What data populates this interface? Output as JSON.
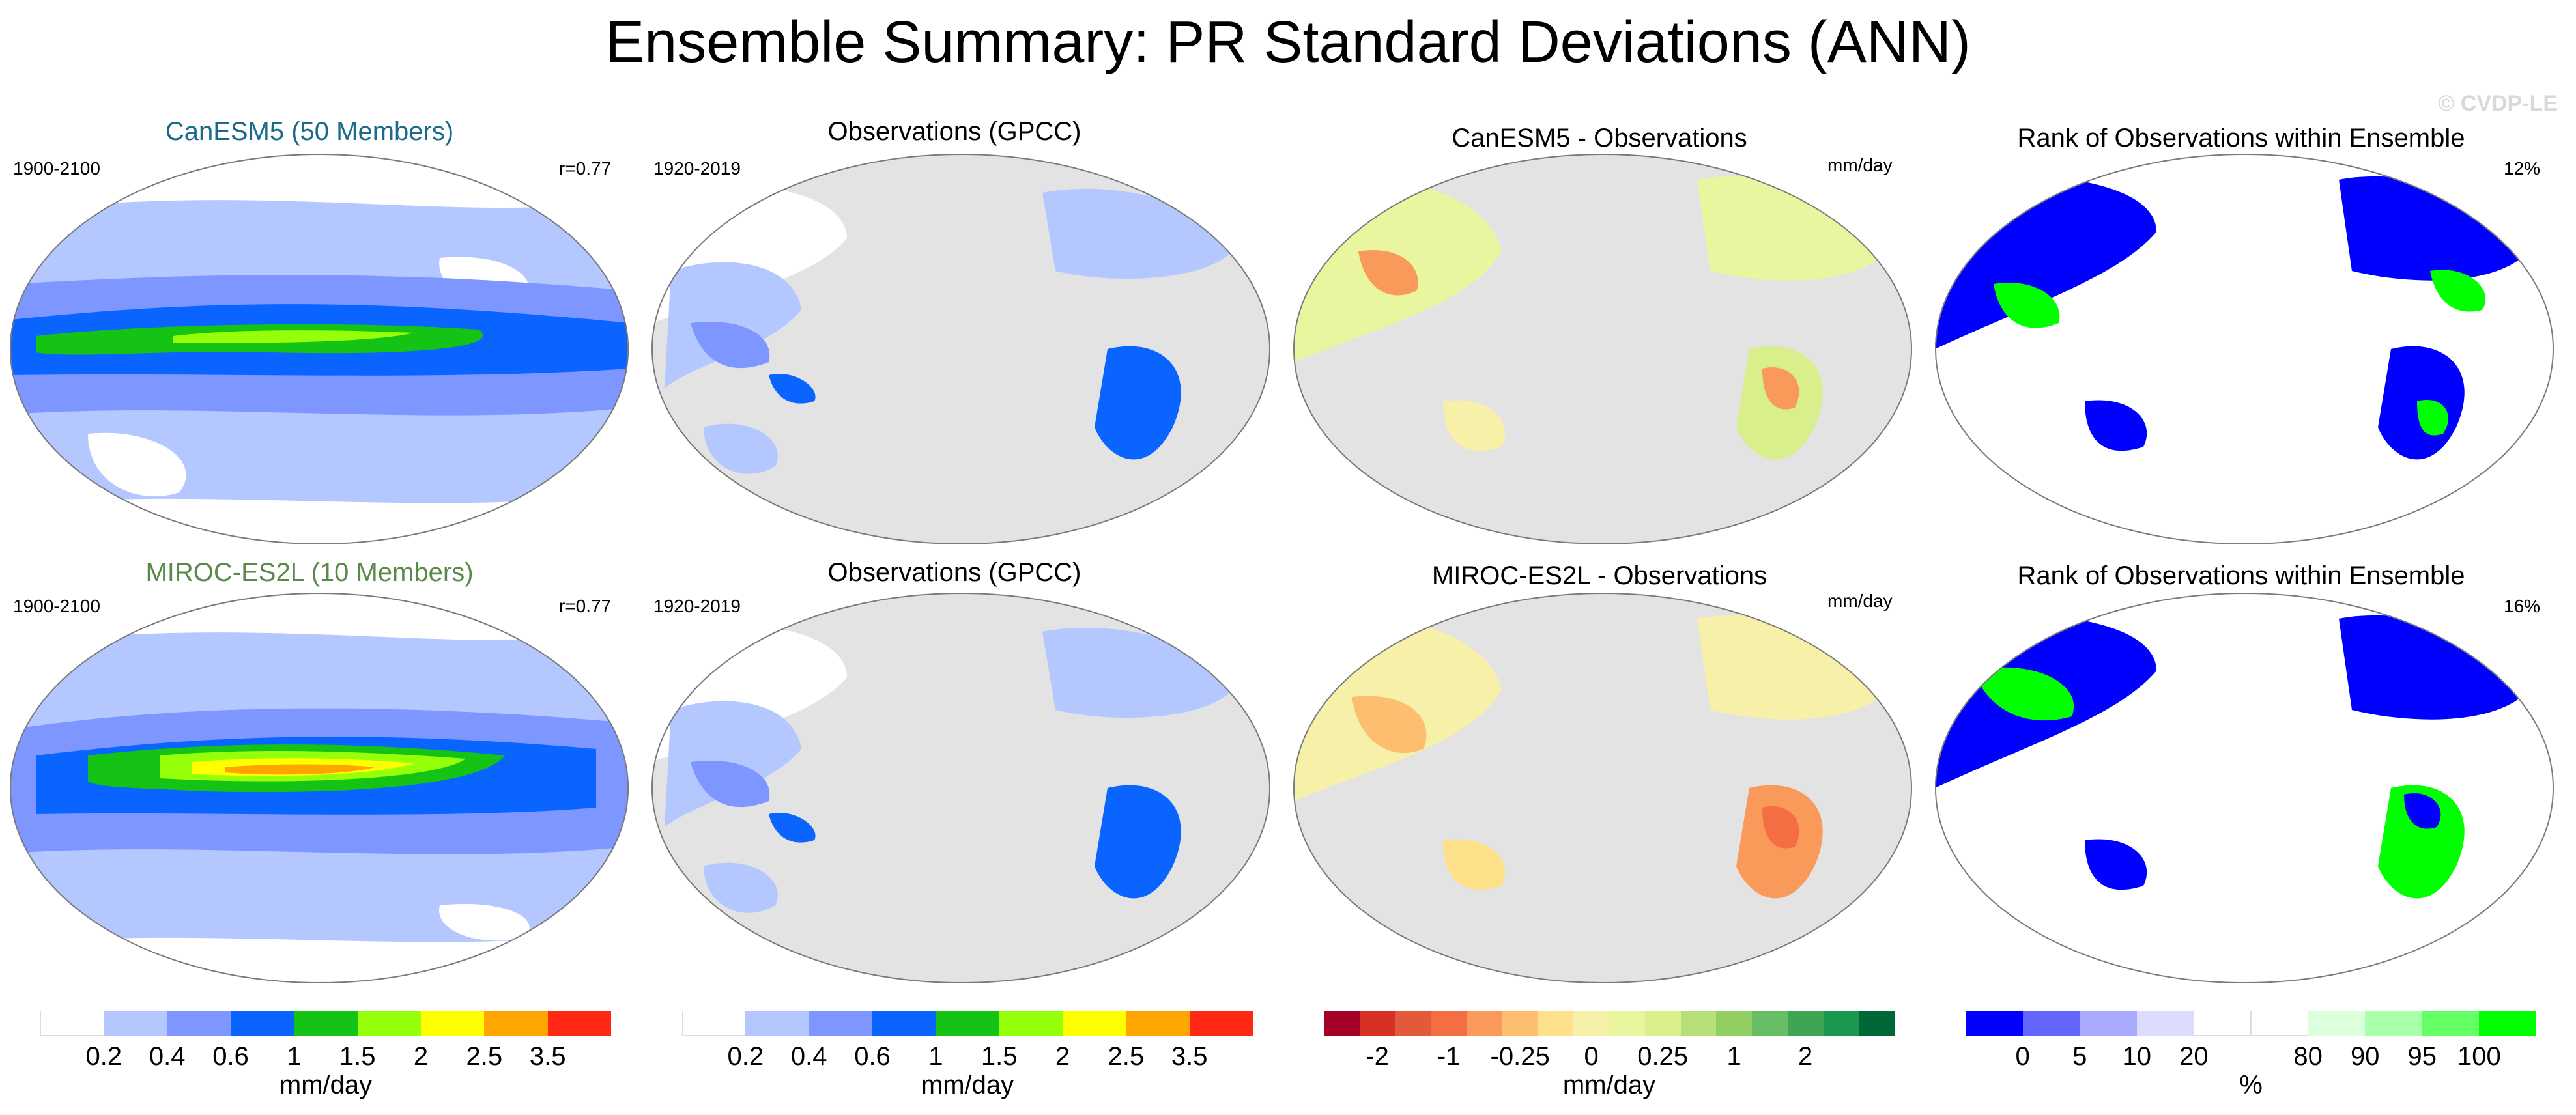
{
  "title": "Ensemble Summary: PR Standard Deviations (ANN)",
  "watermark": "© CVDP-LE",
  "rows": [
    {
      "model_title": "CanESM5 (50 Members)",
      "model_title_color": "#1b6a8a",
      "model_years": "1900-2100",
      "model_r": "r=0.77",
      "obs_title": "Observations (GPCC)",
      "obs_years": "1920-2019",
      "diff_title": "CanESM5 - Observations",
      "diff_units": "mm/day",
      "rank_title": "Rank of Observations within Ensemble",
      "rank_pct": "12%"
    },
    {
      "model_title": "MIROC-ES2L (10 Members)",
      "model_title_color": "#5a8a4a",
      "model_years": "1900-2100",
      "model_r": "r=0.77",
      "obs_title": "Observations (GPCC)",
      "obs_years": "1920-2019",
      "diff_title": "MIROC-ES2L - Observations",
      "diff_units": "mm/day",
      "rank_title": "Rank of Observations within Ensemble",
      "rank_pct": "16%"
    }
  ],
  "colorbars": [
    {
      "units": "mm/day",
      "colors": [
        "#ffffff",
        "#b4c8ff",
        "#7e96ff",
        "#0a64ff",
        "#14c314",
        "#96ff0a",
        "#ffff00",
        "#ffa500",
        "#ff2814"
      ],
      "ticks": [
        "0.2",
        "0.4",
        "0.6",
        "1",
        "1.5",
        "2",
        "2.5",
        "3.5"
      ]
    },
    {
      "units": "mm/day",
      "colors": [
        "#ffffff",
        "#b4c8ff",
        "#7e96ff",
        "#0a64ff",
        "#14c314",
        "#96ff0a",
        "#ffff00",
        "#ffa500",
        "#ff2814"
      ],
      "ticks": [
        "0.2",
        "0.4",
        "0.6",
        "1",
        "1.5",
        "2",
        "2.5",
        "3.5"
      ]
    },
    {
      "units": "mm/day",
      "colors": [
        "#a50026",
        "#d73027",
        "#e35a3a",
        "#f46d43",
        "#fa9a5a",
        "#fdbf6f",
        "#fee08b",
        "#f6f0a8",
        "#eaf5a0",
        "#d9ef8b",
        "#b8e07a",
        "#91cf60",
        "#66bd63",
        "#3fa552",
        "#1a9850",
        "#006837"
      ],
      "ticks": [
        "-2",
        "-1",
        "-0.25",
        "0",
        "0.25",
        "1",
        "2"
      ],
      "tick_slots": [
        1.5,
        3.5,
        5.5,
        7.5,
        9.5,
        11.5,
        13.5
      ]
    },
    {
      "units": "%",
      "colors": [
        "#0000ff",
        "#6464ff",
        "#aaaaff",
        "#dcdcff",
        "#ffffff",
        "#ffffff",
        "#dcffdc",
        "#aaffaa",
        "#64ff64",
        "#00ff00"
      ],
      "ticks": [
        "0",
        "5",
        "10",
        "20",
        "80",
        "90",
        "95",
        "100"
      ],
      "tick_slots": [
        1,
        2,
        3,
        4,
        6,
        7,
        8,
        9
      ]
    }
  ],
  "map_colors": {
    "land_gray": "#e3e3e3",
    "ocean_white": "#ffffff",
    "coast": "#7a7a7a"
  }
}
